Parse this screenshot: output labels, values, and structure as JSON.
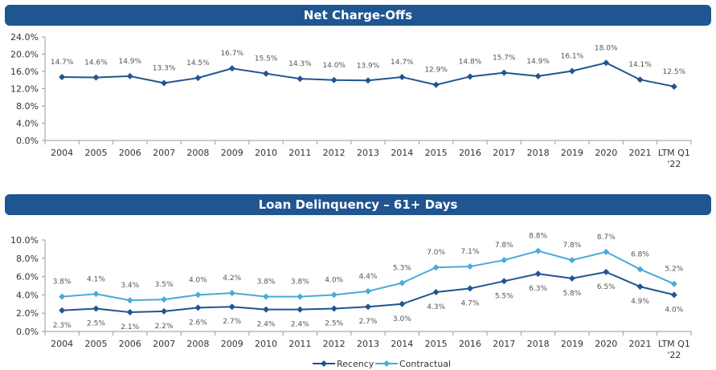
{
  "chart_data": [
    {
      "type": "line",
      "title": "Net Charge-Offs",
      "categories": [
        "2004",
        "2005",
        "2006",
        "2007",
        "2008",
        "2009",
        "2010",
        "2011",
        "2012",
        "2013",
        "2014",
        "2015",
        "2016",
        "2017",
        "2018",
        "2019",
        "2020",
        "2021",
        "LTM Q1 '22"
      ],
      "series": [
        {
          "values": [
            14.7,
            14.6,
            14.9,
            13.3,
            14.5,
            16.7,
            15.5,
            14.3,
            14.0,
            13.9,
            14.7,
            12.9,
            14.8,
            15.7,
            14.9,
            16.1,
            18.0,
            14.1,
            12.5
          ],
          "labels": [
            "14.7%",
            "14.6%",
            "14.9%",
            "13.3%",
            "14.5%",
            "16.7%",
            "15.5%",
            "14.3%",
            "14.0%",
            "13.9%",
            "14.7%",
            "12.9%",
            "14.8%",
            "15.7%",
            "14.9%",
            "16.1%",
            "18.0%",
            "14.1%",
            "12.5%"
          ],
          "color": "#1f5591"
        }
      ],
      "yticks": [
        "0.0%",
        "4.0%",
        "8.0%",
        "12.0%",
        "16.0%",
        "20.0%",
        "24.0%"
      ],
      "ylim": [
        0,
        24
      ],
      "grid": false
    },
    {
      "type": "line",
      "title": "Loan Delinquency – 61+ Days",
      "categories": [
        "2004",
        "2005",
        "2006",
        "2007",
        "2008",
        "2009",
        "2010",
        "2011",
        "2012",
        "2013",
        "2014",
        "2015",
        "2016",
        "2017",
        "2018",
        "2019",
        "2020",
        "2021",
        "LTM Q1 '22"
      ],
      "series": [
        {
          "name": "Recency",
          "values": [
            2.3,
            2.5,
            2.1,
            2.2,
            2.6,
            2.7,
            2.4,
            2.4,
            2.5,
            2.7,
            3.0,
            4.3,
            4.7,
            5.5,
            6.3,
            5.8,
            6.5,
            4.9,
            4.0
          ],
          "labels": [
            "2.3%",
            "2.5%",
            "2.1%",
            "2.2%",
            "2.6%",
            "2.7%",
            "2.4%",
            "2.4%",
            "2.5%",
            "2.7%",
            "3.0%",
            "4.3%",
            "4.7%",
            "5.5%",
            "6.3%",
            "5.8%",
            "6.5%",
            "4.9%",
            "4.0%"
          ],
          "color": "#1f5591"
        },
        {
          "name": "Contractual",
          "values": [
            3.8,
            4.1,
            3.4,
            3.5,
            4.0,
            4.2,
            3.8,
            3.8,
            4.0,
            4.4,
            5.3,
            7.0,
            7.1,
            7.8,
            8.8,
            7.8,
            8.7,
            6.8,
            5.2
          ],
          "labels": [
            "3.8%",
            "4.1%",
            "3.4%",
            "3.5%",
            "4.0%",
            "4.2%",
            "3.8%",
            "3.8%",
            "4.0%",
            "4.4%",
            "5.3%",
            "7.0%",
            "7.1%",
            "7.8%",
            "8.8%",
            "7.8%",
            "8.7%",
            "6.8%",
            "5.2%"
          ],
          "color": "#4aaad8"
        }
      ],
      "yticks": [
        "0.0%",
        "2.0%",
        "4.0%",
        "6.0%",
        "8.0%",
        "10.0%"
      ],
      "ylim": [
        0,
        10
      ],
      "legend": "bottom-center",
      "grid": false
    }
  ]
}
